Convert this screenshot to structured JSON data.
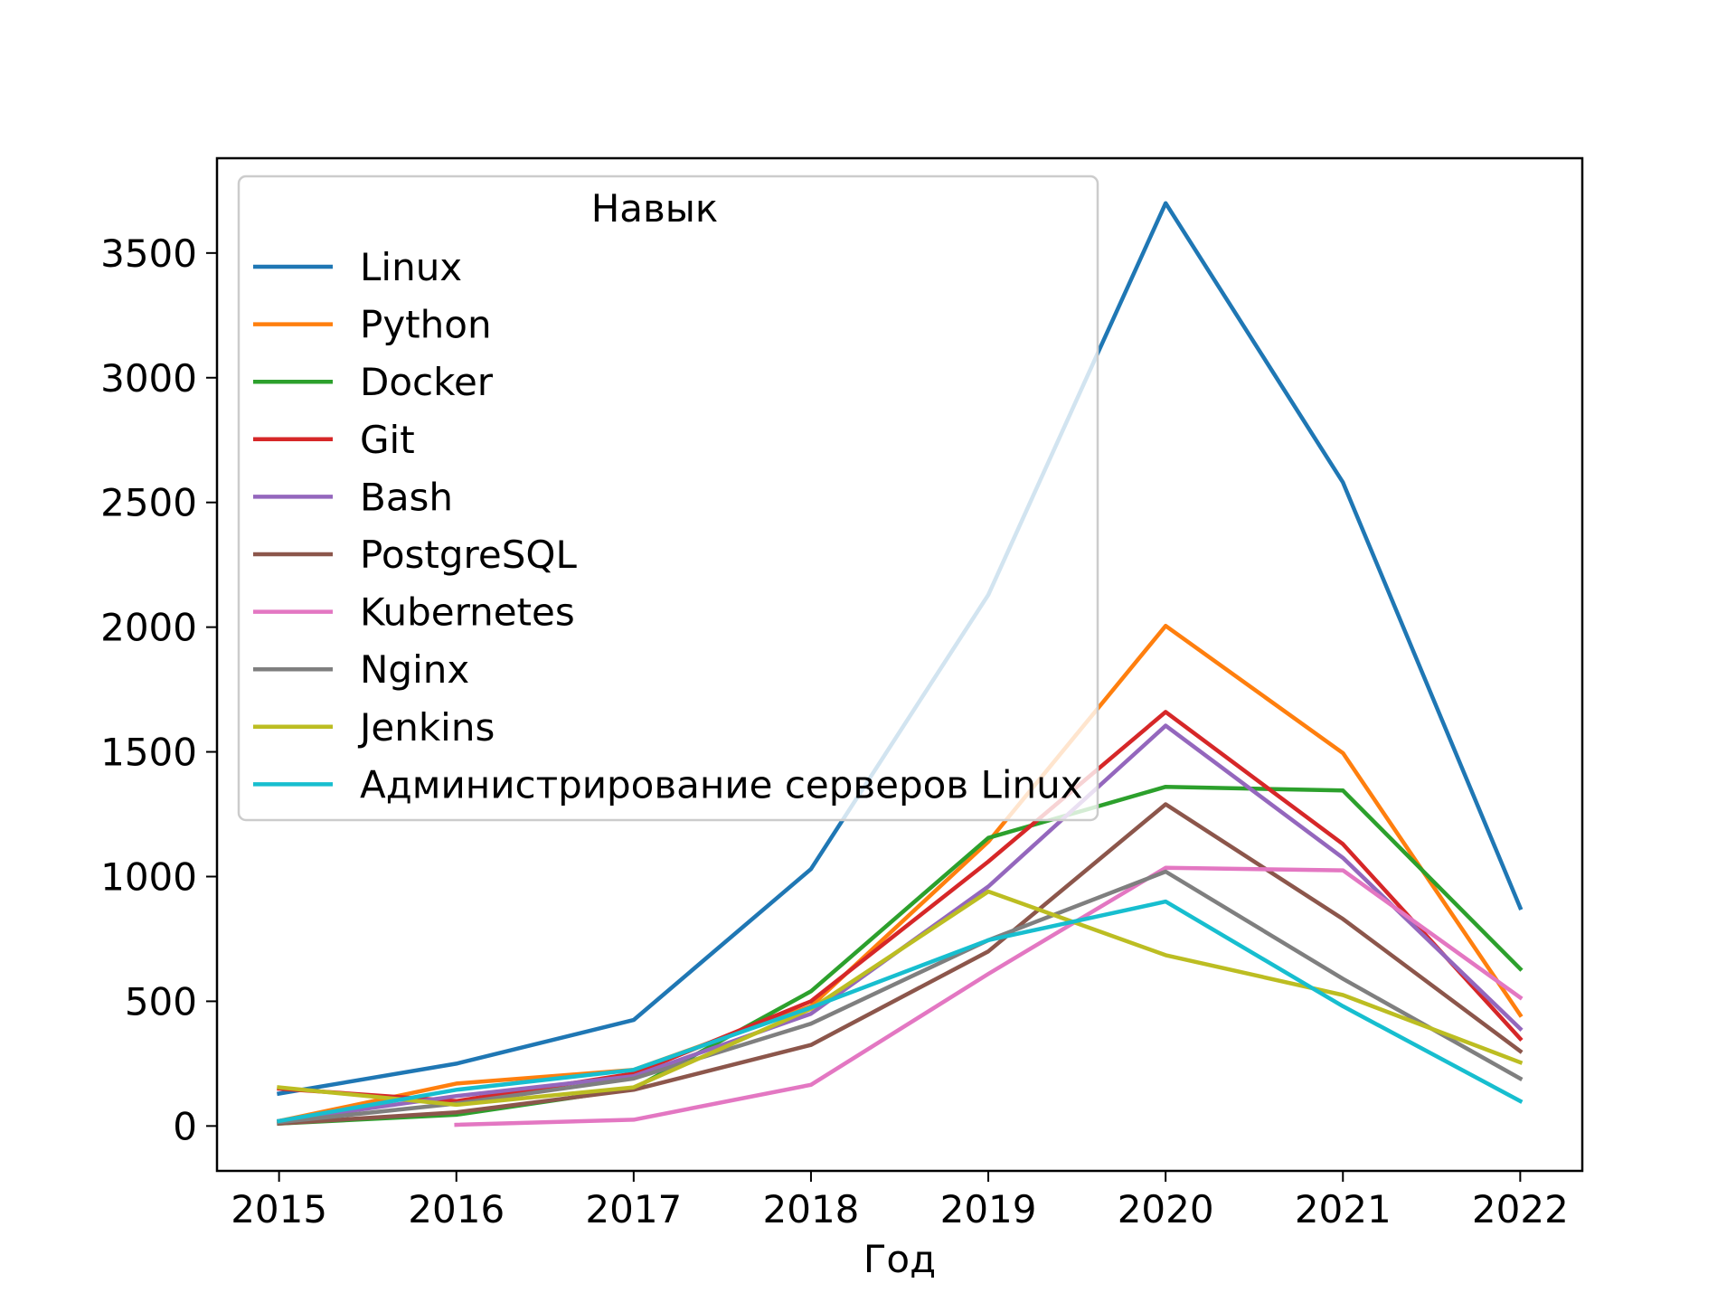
{
  "chart_data": {
    "type": "line",
    "x": [
      2015,
      2016,
      2017,
      2018,
      2019,
      2020,
      2021,
      2022
    ],
    "xlabel": "Год",
    "ylabel": "",
    "xlim": [
      2014.65,
      2022.35
    ],
    "ylim": [
      -180,
      3880
    ],
    "xticks": [
      "2015",
      "2016",
      "2017",
      "2018",
      "2019",
      "2020",
      "2021",
      "2022"
    ],
    "yticks": [
      0,
      500,
      1000,
      1500,
      2000,
      2500,
      3000,
      3500
    ],
    "ytick_labels": [
      "0",
      "500",
      "1000",
      "1500",
      "2000",
      "2500",
      "3000",
      "3500"
    ],
    "grid": false,
    "legend": {
      "title": "Навык",
      "placement": "upper-left"
    },
    "series": [
      {
        "name": "Linux",
        "color": "#1f77b4",
        "values": [
          130,
          250,
          425,
          1030,
          2130,
          3700,
          2580,
          875
        ]
      },
      {
        "name": "Python",
        "color": "#ff7f0e",
        "values": [
          20,
          170,
          225,
          480,
          1140,
          2005,
          1495,
          445
        ]
      },
      {
        "name": "Docker",
        "color": "#2ca02c",
        "values": [
          10,
          45,
          150,
          540,
          1155,
          1360,
          1345,
          630
        ]
      },
      {
        "name": "Git",
        "color": "#d62728",
        "values": [
          150,
          100,
          210,
          500,
          1060,
          1660,
          1130,
          350
        ]
      },
      {
        "name": "Bash",
        "color": "#9467bd",
        "values": [
          20,
          120,
          200,
          450,
          960,
          1605,
          1075,
          390
        ]
      },
      {
        "name": "PostgreSQL",
        "color": "#8c564b",
        "values": [
          10,
          55,
          145,
          325,
          700,
          1290,
          830,
          300
        ]
      },
      {
        "name": "Kubernetes",
        "color": "#e377c2",
        "x": [
          2016,
          2017,
          2018,
          2019,
          2020,
          2021,
          2022
        ],
        "values": [
          5,
          25,
          165,
          610,
          1035,
          1025,
          515
        ]
      },
      {
        "name": "Nginx",
        "color": "#7f7f7f",
        "values": [
          15,
          90,
          190,
          410,
          745,
          1020,
          590,
          190
        ]
      },
      {
        "name": "Jenkins",
        "color": "#bcbd22",
        "values": [
          155,
          85,
          155,
          470,
          940,
          685,
          525,
          255
        ]
      },
      {
        "name": "Администрирование серверов Linux",
        "color": "#17becf",
        "values": [
          20,
          145,
          225,
          475,
          745,
          900,
          480,
          100
        ]
      }
    ]
  }
}
